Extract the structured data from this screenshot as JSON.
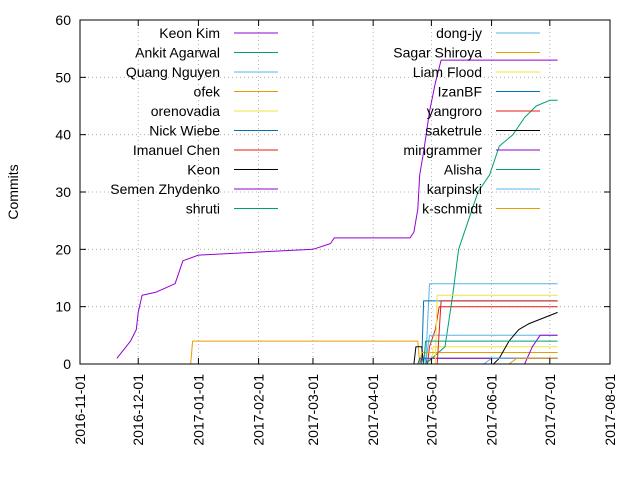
{
  "chart_data": {
    "type": "line",
    "title": "",
    "xlabel": "",
    "ylabel": "Commits",
    "ylim": [
      0,
      60
    ],
    "xlim": [
      "2016-11-01",
      "2017-08-01"
    ],
    "yticks": [
      "0",
      "10",
      "20",
      "30",
      "40",
      "50",
      "60"
    ],
    "xticks": [
      "2016-11-01",
      "2016-12-01",
      "2017-01-01",
      "2017-02-01",
      "2017-03-01",
      "2017-04-01",
      "2017-05-01",
      "2017-06-01",
      "2017-07-01",
      "2017-08-01"
    ],
    "grid": true,
    "legend": "top-left, two columns",
    "series": [
      {
        "name": "Keon Kim",
        "color": "#9400d3",
        "points": [
          [
            "2016-11-20",
            1
          ],
          [
            "2016-11-27",
            4
          ],
          [
            "2016-11-30",
            6
          ],
          [
            "2016-12-01",
            9
          ],
          [
            "2016-12-03",
            12
          ],
          [
            "2016-12-10",
            12.5
          ],
          [
            "2016-12-20",
            14
          ],
          [
            "2016-12-24",
            18
          ],
          [
            "2017-01-01",
            19
          ],
          [
            "2017-03-01",
            20
          ],
          [
            "2017-03-10",
            21
          ],
          [
            "2017-03-12",
            22
          ],
          [
            "2017-04-20",
            22
          ],
          [
            "2017-04-22",
            23
          ],
          [
            "2017-04-24",
            27
          ],
          [
            "2017-04-25",
            33
          ],
          [
            "2017-04-27",
            37
          ],
          [
            "2017-04-30",
            44
          ],
          [
            "2017-05-03",
            49
          ],
          [
            "2017-05-06",
            53
          ],
          [
            "2017-07-05",
            53
          ]
        ]
      },
      {
        "name": "Ankit Agarwal",
        "color": "#009e73",
        "points": [
          [
            "2017-04-28",
            0
          ],
          [
            "2017-05-01",
            1
          ],
          [
            "2017-07-05",
            1
          ]
        ]
      },
      {
        "name": "Quang Nguyen",
        "color": "#56b4e9",
        "points": [
          [
            "2017-04-28",
            0
          ],
          [
            "2017-04-30",
            14
          ],
          [
            "2017-07-05",
            14
          ]
        ]
      },
      {
        "name": "ofek",
        "color": "#e69f00",
        "points": [
          [
            "2016-12-28",
            0
          ],
          [
            "2016-12-29",
            4
          ],
          [
            "2017-04-24",
            4
          ],
          [
            "2017-04-25",
            0
          ]
        ]
      },
      {
        "name": "orenovadia",
        "color": "#f0e442",
        "points": [
          [
            "2017-05-01",
            0
          ],
          [
            "2017-05-02",
            3
          ],
          [
            "2017-07-05",
            3
          ]
        ]
      },
      {
        "name": "Nick Wiebe",
        "color": "#0072b2",
        "points": [
          [
            "2017-04-26",
            0
          ],
          [
            "2017-04-27",
            11
          ],
          [
            "2017-07-05",
            11
          ]
        ]
      },
      {
        "name": "Imanuel Chen",
        "color": "#e51e10",
        "points": [
          [
            "2017-04-29",
            0
          ],
          [
            "2017-04-30",
            3
          ],
          [
            "2017-05-03",
            6
          ],
          [
            "2017-05-05",
            10
          ],
          [
            "2017-07-05",
            10
          ]
        ]
      },
      {
        "name": "Keon",
        "color": "#000000",
        "points": [
          [
            "2017-04-22",
            0
          ],
          [
            "2017-04-23",
            3
          ],
          [
            "2017-04-26",
            3
          ],
          [
            "2017-04-27",
            0
          ]
        ]
      },
      {
        "name": "Semen Zhydenko",
        "color": "#9400d3",
        "points": [
          [
            "2017-04-25",
            0
          ],
          [
            "2017-04-26",
            1
          ],
          [
            "2017-07-05",
            1
          ]
        ]
      },
      {
        "name": "shruti",
        "color": "#009e73",
        "points": [
          [
            "2017-04-28",
            0
          ],
          [
            "2017-05-08",
            3
          ],
          [
            "2017-05-12",
            12
          ],
          [
            "2017-05-15",
            20
          ],
          [
            "2017-05-20",
            25
          ],
          [
            "2017-05-25",
            30
          ],
          [
            "2017-05-31",
            33
          ],
          [
            "2017-06-05",
            38
          ],
          [
            "2017-06-12",
            40
          ],
          [
            "2017-06-18",
            43
          ],
          [
            "2017-06-24",
            45
          ],
          [
            "2017-07-01",
            46
          ],
          [
            "2017-07-05",
            46
          ]
        ]
      },
      {
        "name": "dong-jy",
        "color": "#56b4e9",
        "points": [
          [
            "2017-04-28",
            0
          ],
          [
            "2017-04-30",
            5
          ],
          [
            "2017-07-05",
            5
          ]
        ]
      },
      {
        "name": "Sagar Shiroya",
        "color": "#e69f00",
        "points": [
          [
            "2017-04-25",
            0
          ],
          [
            "2017-04-26",
            2
          ],
          [
            "2017-07-05",
            2
          ]
        ]
      },
      {
        "name": "Liam Flood",
        "color": "#f0e442",
        "points": [
          [
            "2017-05-03",
            0
          ],
          [
            "2017-05-04",
            12
          ],
          [
            "2017-07-05",
            12
          ]
        ]
      },
      {
        "name": "IzanBF",
        "color": "#0072b2",
        "points": [
          [
            "2017-04-24",
            0
          ],
          [
            "2017-04-25",
            1
          ],
          [
            "2017-04-28",
            1
          ],
          [
            "2017-04-29",
            0
          ]
        ]
      },
      {
        "name": "yangroro",
        "color": "#e51e10",
        "points": [
          [
            "2017-05-04",
            0
          ],
          [
            "2017-05-06",
            11
          ],
          [
            "2017-07-05",
            11
          ]
        ]
      },
      {
        "name": "saketrule",
        "color": "#000000",
        "points": [
          [
            "2017-06-02",
            0
          ],
          [
            "2017-06-05",
            1
          ],
          [
            "2017-06-10",
            4
          ],
          [
            "2017-06-15",
            6
          ],
          [
            "2017-06-20",
            7
          ],
          [
            "2017-07-05",
            9
          ]
        ]
      },
      {
        "name": "mingrammer",
        "color": "#9400d3",
        "points": [
          [
            "2017-06-18",
            0
          ],
          [
            "2017-06-22",
            3
          ],
          [
            "2017-06-26",
            5
          ],
          [
            "2017-07-05",
            5
          ]
        ]
      },
      {
        "name": "Alisha",
        "color": "#009e73",
        "points": [
          [
            "2017-04-27",
            0
          ],
          [
            "2017-04-28",
            4
          ],
          [
            "2017-07-05",
            4
          ]
        ]
      },
      {
        "name": "karpinski",
        "color": "#56b4e9",
        "points": [
          [
            "2017-05-28",
            0
          ],
          [
            "2017-06-01",
            1
          ],
          [
            "2017-07-05",
            1
          ]
        ]
      },
      {
        "name": "k-schmidt",
        "color": "#e69f00",
        "points": [
          [
            "2017-06-10",
            0
          ],
          [
            "2017-06-14",
            1
          ],
          [
            "2017-07-05",
            1
          ]
        ]
      }
    ]
  }
}
